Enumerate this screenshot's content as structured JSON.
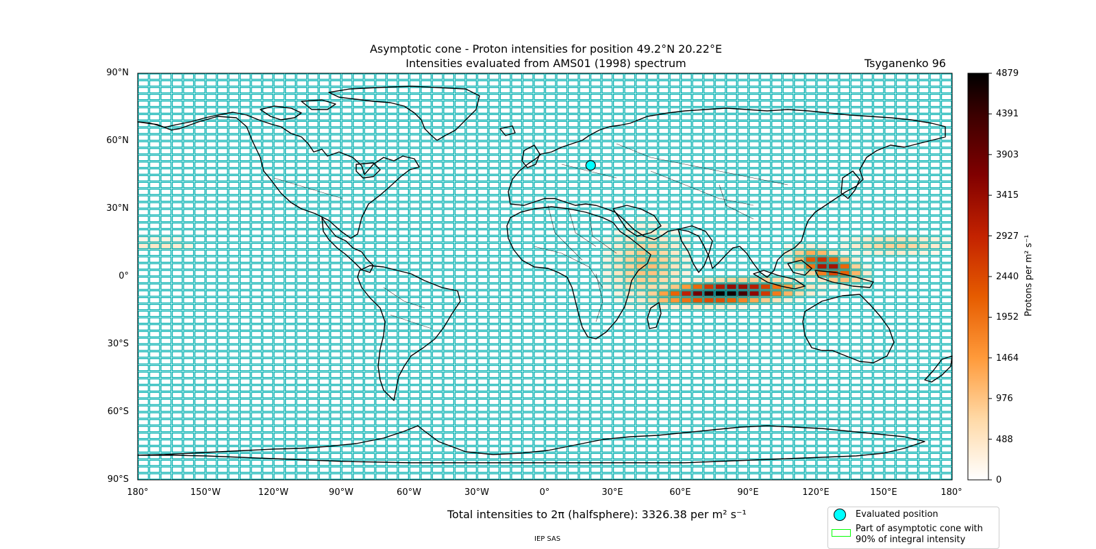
{
  "title_line1": "Asymptotic cone - Proton intensities for position 49.2°N 20.22°E",
  "title_line2": "Intensities evaluated from AMS01 (1998) spectrum",
  "model_label": "Tsyganenko 96",
  "y_ticks": [
    "90°N",
    "60°N",
    "30°N",
    "0°",
    "30°S",
    "60°S",
    "90°S"
  ],
  "x_ticks": [
    "180°",
    "150°W",
    "120°W",
    "90°W",
    "60°W",
    "30°W",
    "0°",
    "30°E",
    "60°E",
    "90°E",
    "120°E",
    "150°E",
    "180°"
  ],
  "colorbar": {
    "label_html": "Protons per m² s⁻¹",
    "ticks": [
      "4879",
      "4391",
      "3903",
      "3415",
      "2927",
      "2440",
      "1952",
      "1464",
      "976",
      "488",
      "0"
    ],
    "min": 0,
    "max": 4879
  },
  "footer_total": "Total intensities to 2π (halfsphere): 3326.38 per m² s⁻¹",
  "credit": "IEP SAS",
  "legend": {
    "evaluated": "Evaluated position",
    "cone_line1": "Part of asymptotic cone with",
    "cone_line2": "90% of integral intensity"
  },
  "evaluated_position": {
    "lat": 49.2,
    "lon": 20.22
  },
  "colors": {
    "grid_cell_outline": "#00b0b0",
    "cone_outline": "#00ff00",
    "marker": "#00ffff"
  }
}
